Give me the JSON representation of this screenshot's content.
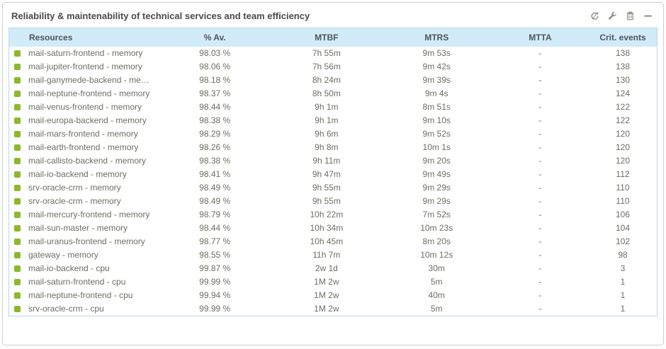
{
  "panel": {
    "title": "Reliability & maintenability of technical services and team efficiency"
  },
  "toolbar": {
    "icons": [
      "refresh-icon",
      "wrench-icon",
      "trash-icon",
      "minimize-icon"
    ]
  },
  "table": {
    "columns": [
      "Resources",
      "% Av.",
      "MTBF",
      "MTRS",
      "MTTA",
      "Crit. events"
    ],
    "rows": [
      {
        "resource": "mail-saturn-frontend - memory",
        "availability": "98.03 %",
        "mtbf": "7h 55m",
        "mtrs": "9m 53s",
        "mtta": "-",
        "crit_events": "138"
      },
      {
        "resource": "mail-jupiter-frontend - memory",
        "availability": "98.06 %",
        "mtbf": "7h 56m",
        "mtrs": "9m 42s",
        "mtta": "-",
        "crit_events": "138"
      },
      {
        "resource": "mail-ganymede-backend - memory",
        "availability": "98.18 %",
        "mtbf": "8h 24m",
        "mtrs": "9m 39s",
        "mtta": "-",
        "crit_events": "130"
      },
      {
        "resource": "mail-neptune-frontend - memory",
        "availability": "98.37 %",
        "mtbf": "8h 50m",
        "mtrs": "9m 4s",
        "mtta": "-",
        "crit_events": "124"
      },
      {
        "resource": "mail-venus-frontend - memory",
        "availability": "98.44 %",
        "mtbf": "9h 1m",
        "mtrs": "8m 51s",
        "mtta": "-",
        "crit_events": "122"
      },
      {
        "resource": "mail-europa-backend - memory",
        "availability": "98.38 %",
        "mtbf": "9h 1m",
        "mtrs": "9m 10s",
        "mtta": "-",
        "crit_events": "122"
      },
      {
        "resource": "mail-mars-frontend - memory",
        "availability": "98.29 %",
        "mtbf": "9h 6m",
        "mtrs": "9m 52s",
        "mtta": "-",
        "crit_events": "120"
      },
      {
        "resource": "mail-earth-frontend - memory",
        "availability": "98.26 %",
        "mtbf": "9h 8m",
        "mtrs": "10m 1s",
        "mtta": "-",
        "crit_events": "120"
      },
      {
        "resource": "mail-callisto-backend - memory",
        "availability": "98.38 %",
        "mtbf": "9h 11m",
        "mtrs": "9m 20s",
        "mtta": "-",
        "crit_events": "120"
      },
      {
        "resource": "mail-io-backend - memory",
        "availability": "98.41 %",
        "mtbf": "9h 47m",
        "mtrs": "9m 49s",
        "mtta": "-",
        "crit_events": "112"
      },
      {
        "resource": "srv-oracle-crm - memory",
        "availability": "98.49 %",
        "mtbf": "9h 55m",
        "mtrs": "9m 29s",
        "mtta": "-",
        "crit_events": "110"
      },
      {
        "resource": "srv-oracle-crm - memory",
        "availability": "98.49 %",
        "mtbf": "9h 55m",
        "mtrs": "9m 29s",
        "mtta": "-",
        "crit_events": "110"
      },
      {
        "resource": "mail-mercury-frontend - memory",
        "availability": "98.79 %",
        "mtbf": "10h 22m",
        "mtrs": "7m 52s",
        "mtta": "-",
        "crit_events": "106"
      },
      {
        "resource": "mail-sun-master - memory",
        "availability": "98.44 %",
        "mtbf": "10h 34m",
        "mtrs": "10m 23s",
        "mtta": "-",
        "crit_events": "104"
      },
      {
        "resource": "mail-uranus-frontend - memory",
        "availability": "98.77 %",
        "mtbf": "10h 45m",
        "mtrs": "8m 20s",
        "mtta": "-",
        "crit_events": "102"
      },
      {
        "resource": "gateway - memory",
        "availability": "98.55 %",
        "mtbf": "11h 7m",
        "mtrs": "10m 12s",
        "mtta": "-",
        "crit_events": "98"
      },
      {
        "resource": "mail-io-backend - cpu",
        "availability": "99.87 %",
        "mtbf": "2w 1d",
        "mtrs": "30m",
        "mtta": "-",
        "crit_events": "3"
      },
      {
        "resource": "mail-saturn-frontend - cpu",
        "availability": "99.99 %",
        "mtbf": "1M 2w",
        "mtrs": "5m",
        "mtta": "-",
        "crit_events": "1"
      },
      {
        "resource": "mail-neptune-frontend - cpu",
        "availability": "99.94 %",
        "mtbf": "1M 2w",
        "mtrs": "40m",
        "mtta": "-",
        "crit_events": "1"
      },
      {
        "resource": "srv-oracle-crm - cpu",
        "availability": "99.99 %",
        "mtbf": "1M 2w",
        "mtrs": "5m",
        "mtta": "-",
        "crit_events": "1"
      }
    ]
  },
  "colors": {
    "status_ok_green": "#8ab92e",
    "header_bg": "#d2ebf8",
    "table_border": "#b9d8e9",
    "title_text": "#4a4a4a",
    "body_text": "#6e6e64",
    "icon_gray": "#8f8d80"
  }
}
